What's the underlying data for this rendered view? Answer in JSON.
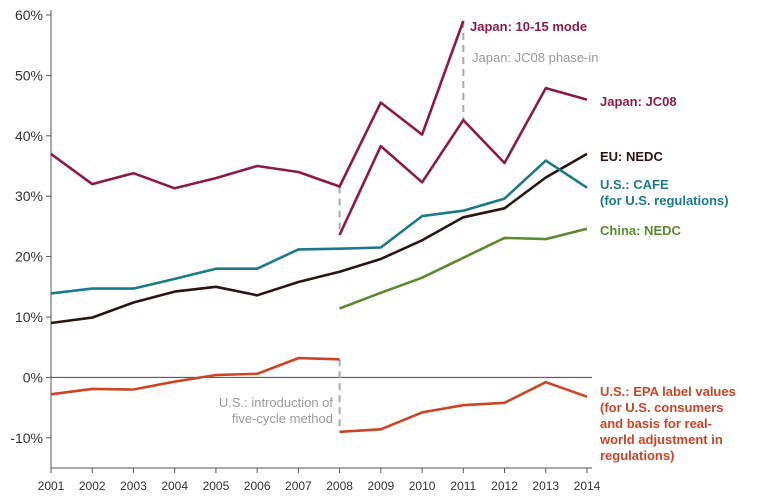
{
  "chart_data": {
    "type": "line",
    "title": "",
    "xlabel": "",
    "ylabel": "",
    "x": [
      2001,
      2002,
      2003,
      2004,
      2005,
      2006,
      2007,
      2008,
      2009,
      2010,
      2011,
      2012,
      2013,
      2014
    ],
    "x_tick_labels": [
      "2001",
      "2002",
      "2003",
      "2004",
      "2005",
      "2006",
      "2007",
      "2008",
      "2009",
      "2010",
      "2011",
      "2012",
      "2013",
      "2014"
    ],
    "ylim": [
      -15,
      60
    ],
    "y_ticks": [
      -10,
      0,
      10,
      20,
      30,
      40,
      50,
      60
    ],
    "y_tick_labels": [
      "-10%",
      "0%",
      "10%",
      "20%",
      "30%",
      "40%",
      "50%",
      "60%"
    ],
    "grid": false,
    "series": [
      {
        "key": "jp1015",
        "color": "#8b1a4a",
        "label_lines": [
          "Japan: 10-15 mode"
        ],
        "points": [
          [
            2001,
            37
          ],
          [
            2002,
            32
          ],
          [
            2003,
            33.8
          ],
          [
            2004,
            31.3
          ],
          [
            2005,
            33
          ],
          [
            2006,
            35
          ],
          [
            2007,
            34
          ],
          [
            2008,
            31.6
          ],
          [
            2009,
            45.5
          ],
          [
            2010,
            40.2
          ],
          [
            2011,
            59
          ]
        ]
      },
      {
        "key": "jpjc08",
        "color": "#8b1a4a",
        "label_lines": [
          "Japan: JC08"
        ],
        "points": [
          [
            2008,
            23.6
          ],
          [
            2009,
            38.3
          ],
          [
            2010,
            32.3
          ],
          [
            2011,
            42.6
          ],
          [
            2012,
            35.5
          ],
          [
            2013,
            47.9
          ],
          [
            2014,
            46
          ]
        ]
      },
      {
        "key": "eu",
        "color": "#2b1512",
        "label_lines": [
          "EU: NEDC"
        ],
        "points": [
          [
            2001,
            9
          ],
          [
            2002,
            9.9
          ],
          [
            2003,
            12.4
          ],
          [
            2004,
            14.2
          ],
          [
            2005,
            15
          ],
          [
            2006,
            13.6
          ],
          [
            2007,
            15.8
          ],
          [
            2008,
            17.5
          ],
          [
            2009,
            19.6
          ],
          [
            2010,
            22.7
          ],
          [
            2011,
            26.5
          ],
          [
            2012,
            28
          ],
          [
            2013,
            33.1
          ],
          [
            2014,
            37
          ]
        ]
      },
      {
        "key": "uscafe",
        "color": "#1a7a8a",
        "label_lines": [
          "U.S.: CAFE",
          "(for U.S. regulations)"
        ],
        "points": [
          [
            2001,
            13.9
          ],
          [
            2002,
            14.7
          ],
          [
            2003,
            14.7
          ],
          [
            2004,
            16.3
          ],
          [
            2005,
            18
          ],
          [
            2006,
            18
          ],
          [
            2007,
            21.2
          ],
          [
            2008,
            21.3
          ],
          [
            2009,
            21.5
          ],
          [
            2010,
            26.7
          ],
          [
            2011,
            27.6
          ],
          [
            2012,
            29.6
          ],
          [
            2013,
            35.9
          ],
          [
            2014,
            31.4
          ]
        ]
      },
      {
        "key": "china",
        "color": "#5a8a2e",
        "label_lines": [
          "China: NEDC"
        ],
        "points": [
          [
            2008,
            11.4
          ],
          [
            2009,
            14
          ],
          [
            2010,
            16.5
          ],
          [
            2011,
            19.8
          ],
          [
            2012,
            23.1
          ],
          [
            2013,
            22.9
          ],
          [
            2014,
            24.6
          ]
        ]
      },
      {
        "key": "usepa",
        "color": "#cc4422",
        "label_lines": [
          "U.S.: EPA label values",
          "(for U.S. consumers",
          "and basis for real-",
          "world adjustment in",
          "regulations)"
        ],
        "points": [
          [
            2001,
            -2.8
          ],
          [
            2002,
            -1.9
          ],
          [
            2003,
            -2
          ],
          [
            2004,
            -0.7
          ],
          [
            2005,
            0.4
          ],
          [
            2006,
            0.6
          ],
          [
            2007,
            3.2
          ],
          [
            2008,
            3
          ],
          [
            2008,
            -9
          ],
          [
            2009,
            -8.6
          ],
          [
            2010,
            -5.8
          ],
          [
            2011,
            -4.6
          ],
          [
            2012,
            -4.2
          ],
          [
            2013,
            -0.8
          ],
          [
            2014,
            -3.2
          ]
        ]
      }
    ],
    "annotations": [
      {
        "key": "jc08_phase_in",
        "text_lines": [
          "Japan: JC08 phase-in"
        ],
        "x": 2011,
        "y_from": 59,
        "y_to": 42.6
      },
      {
        "key": "five_cycle",
        "text_lines": [
          "U.S.: introduction of",
          "five-cycle method"
        ],
        "x": 2008,
        "y_from": 3,
        "y_to": -9
      },
      {
        "key": "jc08_start",
        "text_lines": [],
        "x": 2008,
        "y_from": 31.6,
        "y_to": 23.6
      }
    ]
  }
}
